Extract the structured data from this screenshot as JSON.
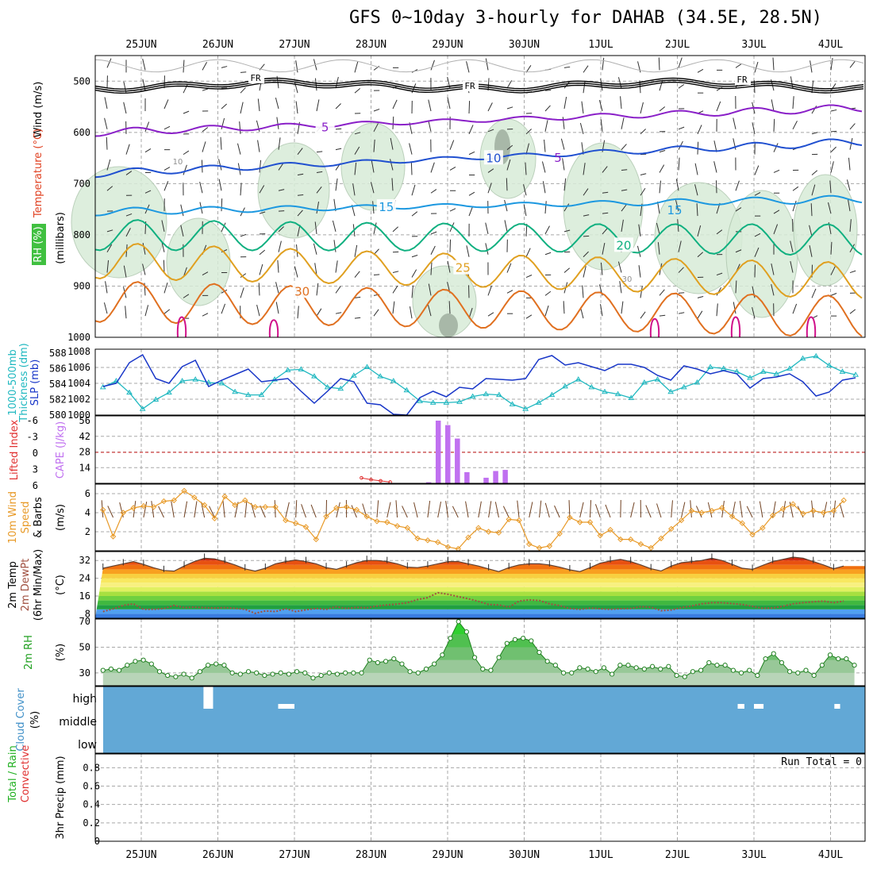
{
  "title": "GFS 0~10day 3-hourly for DAHAB (34.5E, 28.5N)",
  "colors": {
    "thickness": "#20b8c0",
    "slp": "#1836c8",
    "cape": "#c070f0",
    "lifted": "#e03030",
    "wind10": "#e89a28",
    "barb": "#704020",
    "rh": "#5cb85c",
    "cloud": "#62a8d6",
    "temp_max": "#e86010",
    "dewpt_line": "#a05040"
  },
  "chart_data": [
    {
      "panel": "upper-air",
      "type": "contour",
      "x_dates": [
        "25JUN",
        "26JUN",
        "27JUN",
        "28JUN",
        "29JUN",
        "30JUN",
        "1JUL",
        "2JUL",
        "3JUL",
        "4JUL"
      ],
      "ylabel_temp": "Temperature (°C)",
      "ylabel_wind": "Wind (m/s)",
      "ylabel_p": "(millibars)",
      "ylabel_rh": "RH (%)",
      "y_ticks": [
        "500",
        "600",
        "700",
        "800",
        "900",
        "1000"
      ],
      "y_range": [
        450,
        1000
      ],
      "freezing_label": "FR",
      "isotherms": [
        {
          "name": "5",
          "color": "#8a20c8",
          "p_start": 600,
          "p_end": 552,
          "label_day": 2.4
        },
        {
          "name": "10",
          "color": "#2050d0",
          "p_start": 680,
          "p_end": 618,
          "label_day": 4.6
        },
        {
          "name": "15",
          "color": "#1c98e0",
          "p_start": 755,
          "p_end": 730,
          "label_day": 3.2
        },
        {
          "name": "20",
          "color": "#10b080",
          "p_start": 800,
          "p_end": 810,
          "label_day": 6.3
        },
        {
          "name": "25",
          "color": "#e0a020",
          "p_start": 850,
          "p_end": 890,
          "label_day": 4.2
        },
        {
          "name": "30",
          "color": "#e07020",
          "p_start": 930,
          "p_end": 960,
          "label_day": 2.1
        }
      ],
      "extra_labels": {
        "freeze_0": "FR",
        "freeze_1": "FR",
        "freeze_2": "FR",
        "iso5b": "5",
        "iso15b": "15",
        "rh10": "10",
        "rh30": "30"
      }
    },
    {
      "panel": "thickness-slp",
      "type": "line",
      "ylabel_thickness": "1000-500mb Thickness (dm)",
      "ylabel_slp": "SLP (mb)",
      "thickness_ticks": [
        "588",
        "586",
        "584",
        "582",
        "580"
      ],
      "slp_ticks": [
        "1008",
        "1006",
        "1004",
        "1002",
        "1000"
      ],
      "thickness_range": [
        580,
        588.5
      ],
      "slp_range": [
        1000,
        1008.3
      ],
      "series": [
        {
          "name": "SLP",
          "values": [
            1003.6,
            1004.0,
            1006.6,
            1007.6,
            1004.6,
            1004.0,
            1006.1,
            1006.9,
            1003.6,
            1004.4,
            1005.1,
            1005.8,
            1004.2,
            1004.4,
            1004.6,
            1003.0,
            1001.5,
            1003.0,
            1004.6,
            1004.2,
            1001.5,
            1001.3,
            1000.1,
            1000.0,
            1002.2,
            1003.0,
            1002.3,
            1003.5,
            1003.3,
            1004.6,
            1004.5,
            1004.4,
            1004.6,
            1007.0,
            1007.5,
            1006.3,
            1006.6,
            1006.1,
            1005.6,
            1006.4,
            1006.4,
            1006.0,
            1005.0,
            1004.4,
            1006.2,
            1005.8,
            1005.2,
            1005.6,
            1005.2,
            1003.4,
            1004.6,
            1004.8,
            1005.2,
            1004.2,
            1002.4,
            1002.9,
            1004.4,
            1004.7
          ]
        },
        {
          "name": "Thickness",
          "values": [
            583.6,
            584.4,
            582.9,
            580.8,
            582.0,
            582.9,
            584.4,
            584.6,
            584.2,
            584.1,
            583.0,
            582.6,
            582.6,
            584.6,
            585.8,
            585.9,
            585.0,
            583.6,
            583.4,
            585.1,
            586.2,
            585.0,
            584.4,
            583.2,
            581.8,
            581.6,
            581.6,
            581.7,
            582.4,
            582.7,
            582.6,
            581.4,
            580.8,
            581.6,
            582.6,
            583.7,
            584.6,
            583.6,
            583.0,
            582.7,
            582.2,
            584.2,
            584.6,
            583.0,
            583.6,
            584.2,
            586.2,
            586.0,
            585.6,
            584.8,
            585.6,
            585.3,
            586.0,
            587.3,
            587.6,
            586.4,
            585.6,
            585.2
          ]
        }
      ]
    },
    {
      "panel": "cape-li",
      "type": "bar",
      "ylabel_li": "Lifted Index",
      "ylabel_cape": "CAPE (J/kg)",
      "li_ticks": [
        "-6",
        "-3",
        "0",
        "3",
        "6"
      ],
      "cape_ticks": [
        "56",
        "42",
        "28",
        "14"
      ],
      "cape_range": [
        0,
        56
      ],
      "cape_values": {
        "34": 1,
        "35": 56,
        "36": 52,
        "37": 40,
        "38": 10,
        "40": 5,
        "41": 11,
        "42": 12
      },
      "li_values": [
        [
          27,
          5.2
        ],
        [
          28,
          4.2
        ],
        [
          29,
          3.5
        ],
        [
          30,
          2.8
        ]
      ]
    },
    {
      "panel": "wind10m",
      "type": "line",
      "ylabel": "10m Wind Speed & Barbs",
      "ylabel_units": "(m/s)",
      "y_ticks": [
        "6",
        "4",
        "2"
      ],
      "y_range": [
        0,
        7
      ],
      "values": [
        4.3,
        1.5,
        4.0,
        4.5,
        4.7,
        4.6,
        5.2,
        5.3,
        6.3,
        5.6,
        4.8,
        3.4,
        5.7,
        4.8,
        5.3,
        4.6,
        4.6,
        4.6,
        3.2,
        2.9,
        2.5,
        1.2,
        3.6,
        4.5,
        4.6,
        4.3,
        3.6,
        3.1,
        3.0,
        2.6,
        2.4,
        1.3,
        1.1,
        0.9,
        0.4,
        0.2,
        1.4,
        2.4,
        2.0,
        1.9,
        3.3,
        3.2,
        0.7,
        0.3,
        0.5,
        1.8,
        3.5,
        3.0,
        3.0,
        1.6,
        2.2,
        1.2,
        1.2,
        0.7,
        0.3,
        1.3,
        2.3,
        3.2,
        4.2,
        4.0,
        4.2,
        4.5,
        3.6,
        2.9,
        1.7,
        2.4,
        3.7,
        4.4,
        4.9,
        3.9,
        4.2,
        4.0,
        4.2,
        5.3
      ]
    },
    {
      "panel": "temp2m",
      "type": "area",
      "ylabel": "2m Temp 2m DewPt (6hr Min/Max)",
      "ylabel_units": "(°C)",
      "y_ticks": [
        "32",
        "24",
        "16",
        "8"
      ],
      "y_range": [
        6,
        36
      ],
      "temp": [
        28.5,
        29.5,
        30.5,
        31.5,
        30.2,
        28.7,
        27.5,
        27.2,
        29.5,
        31.5,
        33.0,
        32.7,
        31.5,
        30.0,
        28.2,
        27.2,
        28.5,
        30.5,
        31.5,
        32.2,
        31.5,
        30.5,
        28.8,
        28.0,
        29.5,
        31.0,
        32.0,
        32.0,
        31.5,
        30.5,
        29.0,
        28.8,
        29.5,
        30.5,
        31.5,
        31.5,
        30.5,
        29.5,
        28.2,
        27.0,
        28.8,
        30.0,
        30.5,
        30.5,
        30.0,
        29.0,
        27.8,
        27.0,
        28.8,
        30.8,
        31.8,
        32.5,
        31.5,
        30.0,
        28.3,
        27.3,
        29.5,
        31.0,
        31.5,
        32.0,
        33.0,
        32.0,
        30.3,
        28.5,
        28.0,
        29.8,
        31.5,
        32.5,
        33.5,
        33.0,
        31.5,
        30.0,
        28.3,
        29.5
      ],
      "dewpt": [
        9.0,
        10.2,
        11.8,
        12.5,
        10.0,
        10.0,
        10.4,
        11.8,
        10.8,
        11.0,
        10.8,
        10.6,
        10.8,
        10.5,
        10.0,
        8.2,
        9.3,
        9.0,
        10.3,
        9.0,
        9.8,
        10.4,
        10.0,
        11.2,
        10.4,
        10.9,
        10.7,
        11.5,
        12.0,
        12.4,
        13.0,
        14.4,
        15.3,
        17.5,
        16.8,
        15.7,
        14.8,
        13.6,
        12.2,
        12.0,
        11.0,
        13.7,
        14.3,
        14.0,
        12.5,
        11.7,
        10.4,
        10.0,
        10.6,
        10.3,
        10.0,
        10.3,
        10.4,
        11.2,
        11.0,
        9.4,
        9.7,
        10.8,
        11.5,
        12.5,
        13.0,
        13.0,
        12.6,
        12.2,
        11.4,
        10.5,
        10.6,
        11.4,
        12.5,
        13.0,
        13.4,
        13.7,
        13.0,
        13.7
      ]
    },
    {
      "panel": "rh2m",
      "type": "area",
      "ylabel": "2m RH",
      "ylabel_units": "(%)",
      "y_ticks": [
        "70",
        "50",
        "30"
      ],
      "y_range": [
        20,
        72
      ],
      "values": [
        32,
        33,
        32,
        36,
        39,
        40,
        37,
        31,
        28,
        27,
        29,
        26,
        31,
        36,
        37,
        36,
        30,
        29,
        31,
        30,
        28,
        29,
        30,
        29,
        31,
        30,
        26,
        28,
        30,
        29,
        30,
        30,
        30,
        40,
        38,
        39,
        41,
        37,
        31,
        30,
        33,
        37,
        44,
        57,
        70,
        62,
        42,
        33,
        32,
        42,
        53,
        56,
        57,
        55,
        46,
        39,
        36,
        30,
        30,
        34,
        33,
        31,
        34,
        29,
        36,
        36,
        34,
        33,
        35,
        33,
        35,
        28,
        27,
        31,
        32,
        38,
        36,
        36,
        32,
        30,
        32,
        28,
        41,
        45,
        38,
        31,
        30,
        32,
        28,
        36,
        44,
        41,
        41,
        36
      ]
    },
    {
      "panel": "cloud",
      "type": "heatmap",
      "ylabel": "Cloud Cover (%)",
      "levels": [
        "high",
        "middle",
        "low"
      ],
      "gaps_high": [
        [
          10.5,
          11.5
        ],
        [
          18.3,
          20.0
        ],
        [
          66.3,
          67.0
        ],
        [
          68.0,
          69.0
        ],
        [
          76.4,
          77.0
        ]
      ]
    },
    {
      "panel": "precip",
      "type": "bar",
      "ylabel": "3hr Precip (mm)",
      "ylabel_series": "Total / Rain",
      "ylabel_conv": "Convective",
      "y_ticks": [
        "0.8",
        "0.6",
        "0.4",
        "0.2",
        "0"
      ],
      "y_range": [
        0,
        0.95
      ],
      "run_total": "Run Total = 0"
    }
  ]
}
